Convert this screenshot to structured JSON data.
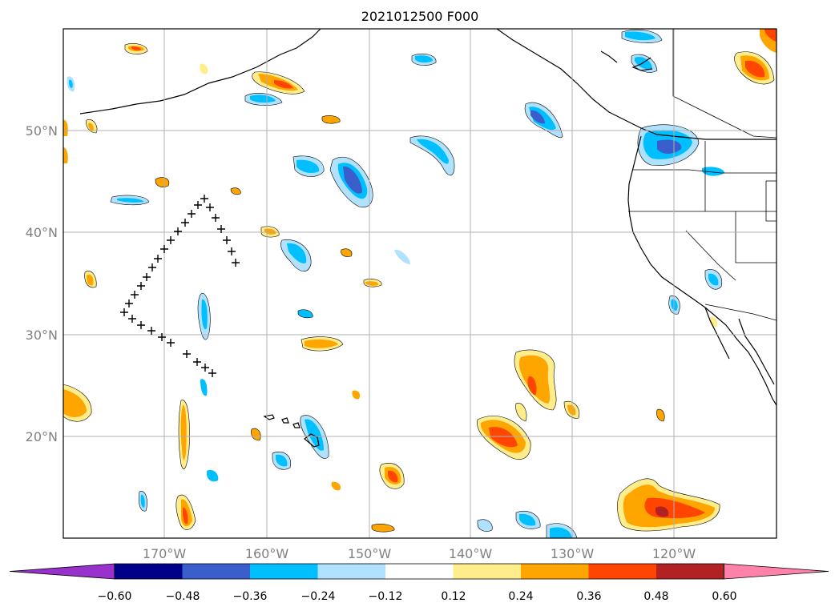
{
  "title": "2021012500 F000",
  "map": {
    "lat_labels": [
      "50°N",
      "40°N",
      "30°N",
      "20°N"
    ],
    "lon_labels": [
      "170°W",
      "160°W",
      "150°W",
      "140°W",
      "130°W",
      "120°W"
    ]
  },
  "colorbar": {
    "labels": [
      "−0.60",
      "−0.48",
      "−0.36",
      "−0.24",
      "−0.12",
      "0.12",
      "0.24",
      "0.36",
      "0.48",
      "0.60"
    ],
    "colors": [
      "#9932cc",
      "#00008b",
      "#3a5fcd",
      "#00bfff",
      "#b0e2ff",
      "#ffffff",
      "#ffec8b",
      "#ffa500",
      "#ff4500",
      "#b22222",
      "#ff82ab"
    ]
  },
  "accent_colors": {
    "land_outline": "#000000",
    "gridline": "#b0b0b0",
    "marker": "#000000"
  }
}
